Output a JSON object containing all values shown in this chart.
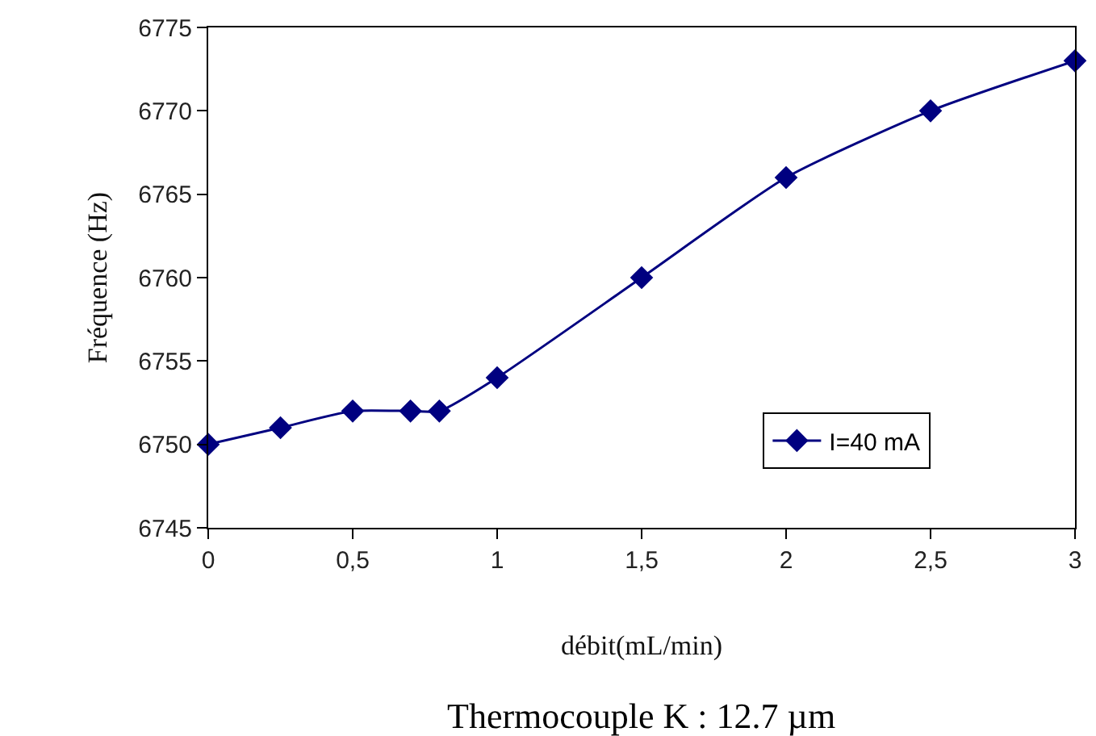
{
  "chart_data": {
    "type": "line",
    "xlabel": "débit(mL/min)",
    "ylabel": "Fréquence (Hz)",
    "annotations": [
      "Thermocouple K : 12.7 µm"
    ],
    "series": [
      {
        "name": "I=40 mA",
        "color": "#000080",
        "x": [
          0,
          0.25,
          0.5,
          0.7,
          0.8,
          1,
          1.5,
          2,
          2.5,
          3
        ],
        "values": [
          6750,
          6751,
          6752,
          6752,
          6752,
          6754,
          6760,
          6766,
          6770,
          6773
        ]
      }
    ],
    "xlim": [
      0,
      3
    ],
    "xticks": [
      0,
      {
        "value": 0.5,
        "label": "0,5"
      },
      1,
      {
        "value": 1.5,
        "label": "1,5"
      },
      2,
      {
        "value": 2.5,
        "label": "2,5"
      },
      3
    ],
    "ylim": [
      6745,
      6775
    ],
    "yticks": [
      6745,
      6750,
      6755,
      6760,
      6765,
      6770,
      6775
    ],
    "grid": false,
    "legend": "bottom right",
    "marker": "diamond",
    "line_style": "solid"
  }
}
